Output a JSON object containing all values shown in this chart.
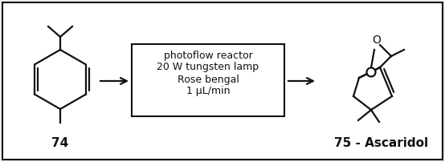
{
  "bg_color": "#f2f2f2",
  "box_bg": "#ffffff",
  "line_color": "#111111",
  "text_color": "#111111",
  "reaction_box_text": [
    "photoflow reactor",
    "20 W tungsten lamp",
    "Rose bengal",
    "1 μL/min"
  ],
  "label_74": "74",
  "label_75": "75 - Ascaridol",
  "font_size_label": 11,
  "font_size_reaction": 9.0,
  "lw": 1.6
}
